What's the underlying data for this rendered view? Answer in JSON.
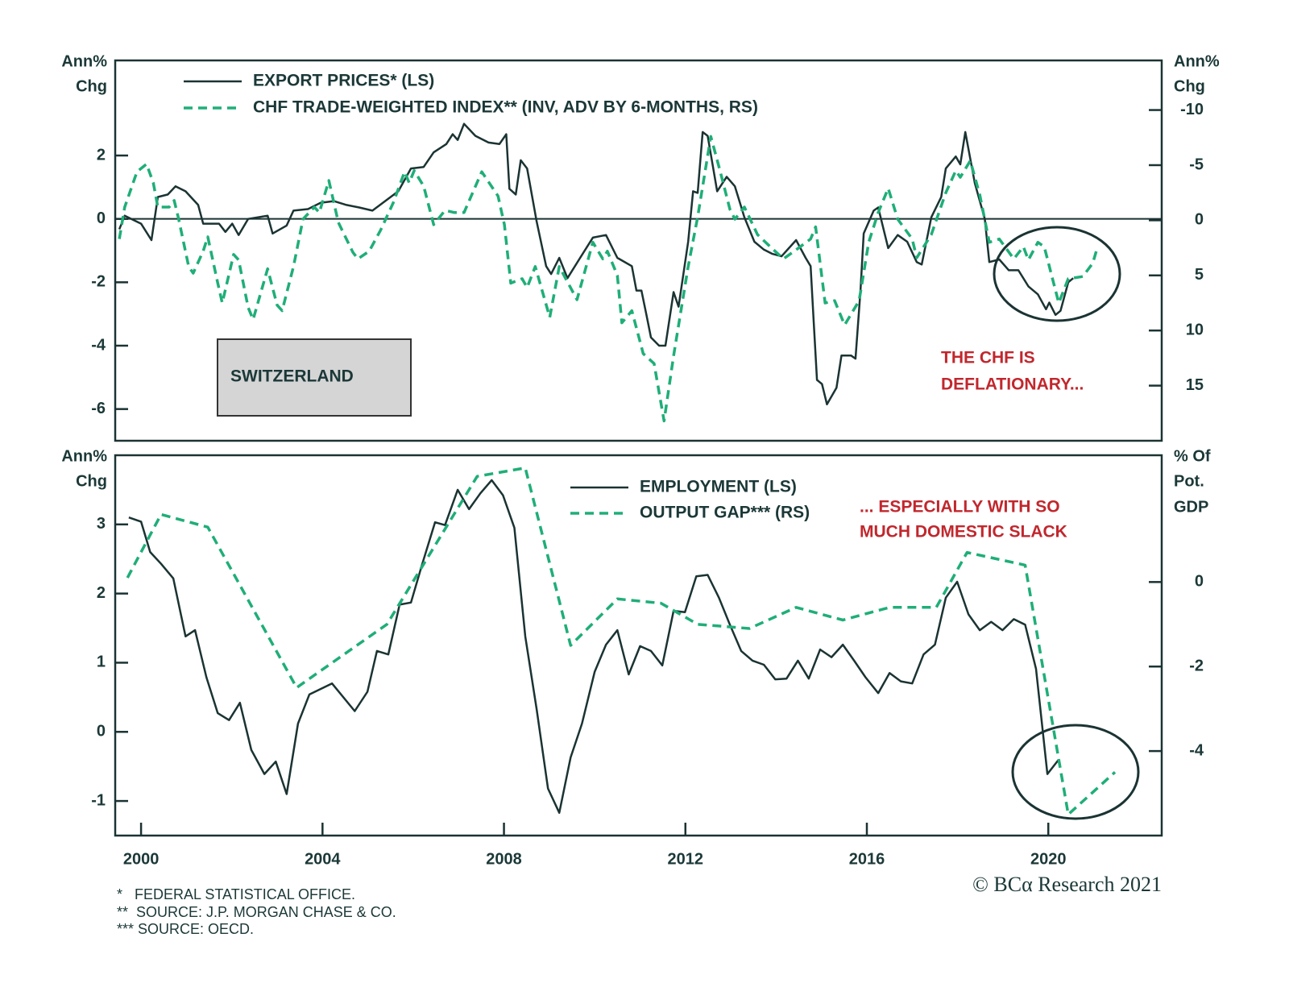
{
  "chart_data": [
    {
      "type": "line",
      "xlim": [
        1999.43,
        2022.5
      ],
      "ylim": [
        -7,
        5
      ],
      "yticks": [
        -6,
        -4,
        -2,
        0,
        2
      ],
      "y2lim": [
        20,
        -14.5
      ],
      "y2ticks": [
        -10,
        -5,
        0,
        5,
        10,
        15
      ],
      "ylabel": [
        "Ann%",
        "Chg"
      ],
      "y2label": [
        "Ann%",
        "Chg"
      ],
      "zero_line": true,
      "series": [
        {
          "name": "EXPORT PRICES* (LS)",
          "color": "#1b3333",
          "dash": false,
          "x": [
            1999.52,
            1999.64,
            2000.0,
            2000.23,
            2000.37,
            2000.59,
            2000.76,
            2000.98,
            2001.26,
            2001.37,
            2001.72,
            2001.86,
            2002.01,
            2002.15,
            2002.36,
            2002.79,
            2002.9,
            2003.21,
            2003.36,
            2003.68,
            2003.96,
            2004.25,
            2004.53,
            2004.81,
            2005.1,
            2005.38,
            2005.67,
            2005.95,
            2006.23,
            2006.45,
            2006.73,
            2006.87,
            2006.98,
            2007.12,
            2007.37,
            2007.66,
            2007.9,
            2008.05,
            2008.12,
            2008.26,
            2008.37,
            2008.51,
            2008.72,
            2008.93,
            2009.04,
            2009.22,
            2009.4,
            2009.68,
            2009.96,
            2010.25,
            2010.5,
            2010.82,
            2010.92,
            2011.03,
            2011.14,
            2011.24,
            2011.42,
            2011.56,
            2011.74,
            2011.85,
            2012.06,
            2012.17,
            2012.27,
            2012.38,
            2012.49,
            2012.7,
            2012.91,
            2013.09,
            2013.3,
            2013.52,
            2013.73,
            2013.91,
            2014.12,
            2014.44,
            2014.65,
            2014.76,
            2014.83,
            2014.9,
            2015.01,
            2015.12,
            2015.33,
            2015.44,
            2015.65,
            2015.75,
            2015.86,
            2015.93,
            2016.15,
            2016.25,
            2016.47,
            2016.68,
            2016.89,
            2017.1,
            2017.21,
            2017.42,
            2017.64,
            2017.74,
            2017.96,
            2018.06,
            2018.17,
            2018.38,
            2018.6,
            2018.7,
            2018.92,
            2019.13,
            2019.34,
            2019.56,
            2019.77,
            2019.95,
            2020.02,
            2020.16,
            2020.27,
            2020.44,
            2020.55
          ],
          "values": [
            -0.33,
            0.1,
            -0.15,
            -0.67,
            0.69,
            0.77,
            1.03,
            0.87,
            0.44,
            -0.15,
            -0.15,
            -0.41,
            -0.15,
            -0.51,
            0.0,
            0.1,
            -0.46,
            -0.21,
            0.26,
            0.31,
            0.51,
            0.56,
            0.44,
            0.36,
            0.26,
            0.56,
            0.87,
            1.59,
            1.64,
            2.1,
            2.36,
            2.67,
            2.49,
            3.0,
            2.62,
            2.41,
            2.36,
            2.67,
            0.95,
            0.77,
            1.85,
            1.59,
            -0.08,
            -1.49,
            -1.74,
            -1.23,
            -1.87,
            -1.23,
            -0.59,
            -0.51,
            -1.23,
            -1.49,
            -2.26,
            -2.26,
            -3.03,
            -3.74,
            -4.0,
            -4.0,
            -2.31,
            -2.77,
            -0.72,
            0.87,
            0.82,
            2.74,
            2.62,
            0.87,
            1.33,
            1.03,
            0.05,
            -0.72,
            -0.97,
            -1.1,
            -1.18,
            -0.67,
            -1.23,
            -1.49,
            -3.28,
            -5.08,
            -5.21,
            -5.85,
            -5.33,
            -4.31,
            -4.31,
            -4.41,
            -2.26,
            -0.46,
            0.26,
            0.36,
            -0.92,
            -0.51,
            -0.72,
            -1.36,
            -1.44,
            0.05,
            0.69,
            1.59,
            1.97,
            1.72,
            2.74,
            1.13,
            0.0,
            -1.36,
            -1.28,
            -1.62,
            -1.62,
            -2.13,
            -2.38,
            -2.85,
            -2.64,
            -3.03,
            -2.9,
            -2.0,
            -1.87
          ]
        },
        {
          "name": "CHF TRADE-WEIGHTED INDEX** (INV, ADV BY 6-MONTHS, RS)",
          "color": "#1fae78",
          "dash": true,
          "axis": "y2",
          "x": [
            1999.52,
            1999.64,
            1999.91,
            2000.12,
            2000.27,
            2000.37,
            2000.62,
            2000.73,
            2000.83,
            2001.05,
            2001.15,
            2001.37,
            2001.47,
            2001.69,
            2001.79,
            2002.04,
            2002.15,
            2002.36,
            2002.47,
            2002.79,
            2003.0,
            2003.11,
            2003.36,
            2003.57,
            2003.82,
            2003.93,
            2004.14,
            2004.35,
            2004.67,
            2004.78,
            2005.03,
            2005.28,
            2005.56,
            2005.81,
            2005.91,
            2006.02,
            2006.23,
            2006.45,
            2006.7,
            2006.91,
            2007.12,
            2007.51,
            2007.87,
            2008.01,
            2008.15,
            2008.4,
            2008.51,
            2008.69,
            2009.01,
            2009.22,
            2009.61,
            2009.96,
            2010.18,
            2010.28,
            2010.5,
            2010.6,
            2010.82,
            2011.07,
            2011.31,
            2011.53,
            2011.74,
            2012.06,
            2012.27,
            2012.56,
            2012.77,
            2012.98,
            2013.09,
            2013.3,
            2013.59,
            2013.87,
            2014.16,
            2014.4,
            2014.76,
            2014.87,
            2015.08,
            2015.29,
            2015.51,
            2015.83,
            2016.04,
            2016.25,
            2016.47,
            2016.68,
            2017.0,
            2017.1,
            2017.42,
            2017.74,
            2017.96,
            2018.06,
            2018.28,
            2018.49,
            2018.7,
            2018.92,
            2019.24,
            2019.45,
            2019.56,
            2019.77,
            2019.91,
            2020.23,
            2020.44,
            2020.76,
            2020.98,
            2021.08
          ],
          "values": [
            1.7,
            -1.2,
            -4.4,
            -5.1,
            -3.4,
            -1.2,
            -1.2,
            -1.8,
            -0.1,
            4.2,
            4.8,
            2.8,
            1.5,
            5.7,
            7.5,
            3.1,
            3.6,
            7.9,
            9.0,
            4.4,
            7.7,
            8.2,
            4.2,
            -0.1,
            -1.2,
            -0.7,
            -3.6,
            0.2,
            2.9,
            3.5,
            2.8,
            0.9,
            -1.6,
            -4.4,
            -3.4,
            -4.5,
            -3.1,
            0.4,
            -0.9,
            -0.7,
            -0.7,
            -4.4,
            -2.2,
            0.4,
            5.7,
            5.3,
            6.1,
            4.2,
            8.8,
            4.2,
            7.2,
            2.0,
            3.5,
            2.8,
            5.0,
            9.3,
            8.2,
            12.1,
            13.0,
            18.2,
            12.3,
            4.2,
            -0.3,
            -7.6,
            -4.4,
            -1.0,
            -0.1,
            -1.2,
            1.3,
            2.4,
            3.5,
            2.8,
            1.7,
            0.6,
            7.5,
            7.3,
            9.5,
            7.3,
            2.0,
            -0.7,
            -2.9,
            -0.1,
            1.7,
            3.4,
            1.3,
            -2.5,
            -4.5,
            -3.9,
            -5.4,
            -2.3,
            2.0,
            1.7,
            3.5,
            2.4,
            3.6,
            2.0,
            2.4,
            7.5,
            5.3,
            5.1,
            3.9,
            2.5
          ]
        }
      ],
      "annotations": [
        {
          "text": [
            "SWITZERLAND"
          ],
          "color": "#1c3838"
        },
        {
          "text": [
            "THE CHF IS",
            "DEFLATIONARY..."
          ],
          "color": "#c1272d"
        }
      ]
    },
    {
      "type": "line",
      "xlim": [
        1999.43,
        2022.5
      ],
      "xticks": [
        2000,
        2004,
        2008,
        2012,
        2016,
        2020
      ],
      "ylim": [
        -1.5,
        4
      ],
      "yticks": [
        -1,
        0,
        1,
        2,
        3
      ],
      "y2lim": [
        -6,
        3
      ],
      "y2ticks": [
        -4,
        -2,
        0
      ],
      "ylabel": [
        "Ann%",
        "Chg"
      ],
      "y2label": [
        "% Of",
        "Pot.",
        "GDP"
      ],
      "zero_line": false,
      "series": [
        {
          "name": "EMPLOYMENT (LS)",
          "color": "#1b3333",
          "dash": false,
          "x": [
            1999.73,
            2000.0,
            2000.2,
            2000.44,
            2000.71,
            2000.98,
            2001.19,
            2001.44,
            2001.69,
            2001.94,
            2002.18,
            2002.43,
            2002.72,
            2002.97,
            2003.21,
            2003.46,
            2003.71,
            2004.21,
            2004.71,
            2004.99,
            2005.2,
            2005.45,
            2005.7,
            2005.95,
            2006.2,
            2006.48,
            2006.7,
            2006.98,
            2007.23,
            2007.48,
            2007.73,
            2007.98,
            2008.23,
            2008.47,
            2008.72,
            2008.97,
            2009.22,
            2009.47,
            2009.72,
            2010.0,
            2010.25,
            2010.5,
            2010.75,
            2011.0,
            2011.24,
            2011.49,
            2011.74,
            2011.99,
            2012.24,
            2012.49,
            2012.74,
            2012.98,
            2013.23,
            2013.48,
            2013.73,
            2013.98,
            2014.23,
            2014.48,
            2014.72,
            2014.97,
            2015.22,
            2015.47,
            2015.72,
            2015.97,
            2016.25,
            2016.5,
            2016.75,
            2017.0,
            2017.25,
            2017.5,
            2017.74,
            2017.99,
            2018.24,
            2018.49,
            2018.74,
            2018.99,
            2019.24,
            2019.49,
            2019.73,
            2019.98,
            2020.23
          ],
          "values": [
            3.1,
            3.04,
            2.6,
            2.43,
            2.22,
            1.38,
            1.47,
            0.79,
            0.27,
            0.17,
            0.42,
            -0.26,
            -0.61,
            -0.43,
            -0.9,
            0.12,
            0.54,
            0.7,
            0.3,
            0.58,
            1.17,
            1.12,
            1.84,
            1.87,
            2.43,
            3.03,
            2.99,
            3.5,
            3.22,
            3.45,
            3.64,
            3.42,
            2.95,
            1.38,
            0.33,
            -0.82,
            -1.17,
            -0.37,
            0.12,
            0.87,
            1.26,
            1.47,
            0.83,
            1.24,
            1.17,
            0.96,
            1.75,
            1.73,
            2.25,
            2.27,
            1.94,
            1.55,
            1.17,
            1.03,
            0.97,
            0.76,
            0.77,
            1.03,
            0.77,
            1.19,
            1.08,
            1.26,
            1.03,
            0.79,
            0.56,
            0.85,
            0.73,
            0.7,
            1.12,
            1.26,
            1.94,
            2.17,
            1.7,
            1.47,
            1.59,
            1.47,
            1.63,
            1.55,
            0.91,
            -0.61,
            -0.4
          ]
        },
        {
          "name": "OUTPUT GAP*** (RS)",
          "color": "#1fae78",
          "dash": true,
          "axis": "y2",
          "x": [
            1999.7,
            2000.44,
            2001.47,
            2003.43,
            2005.42,
            2007.41,
            2008.47,
            2009.47,
            2010.5,
            2011.46,
            2012.27,
            2013.41,
            2014.44,
            2015.47,
            2016.5,
            2017.53,
            2018.21,
            2019.49,
            2020.44,
            2021.47
          ],
          "values": [
            0.1,
            1.6,
            1.3,
            -2.5,
            -1.0,
            2.5,
            2.7,
            -1.5,
            -0.4,
            -0.5,
            -1.0,
            -1.1,
            -0.6,
            -0.9,
            -0.6,
            -0.6,
            0.7,
            0.4,
            -5.5,
            -4.5
          ]
        }
      ],
      "annotations": [
        {
          "text": [
            "... ESPECIALLY WITH SO",
            "MUCH DOMESTIC SLACK"
          ],
          "color": "#c1272d"
        }
      ]
    }
  ],
  "footnotes": [
    "*   FEDERAL STATISTICAL OFFICE.",
    "**  SOURCE: J.P. MORGAN CHASE & CO.",
    "*** SOURCE: OECD."
  ],
  "source": "© BCα Research 2021"
}
